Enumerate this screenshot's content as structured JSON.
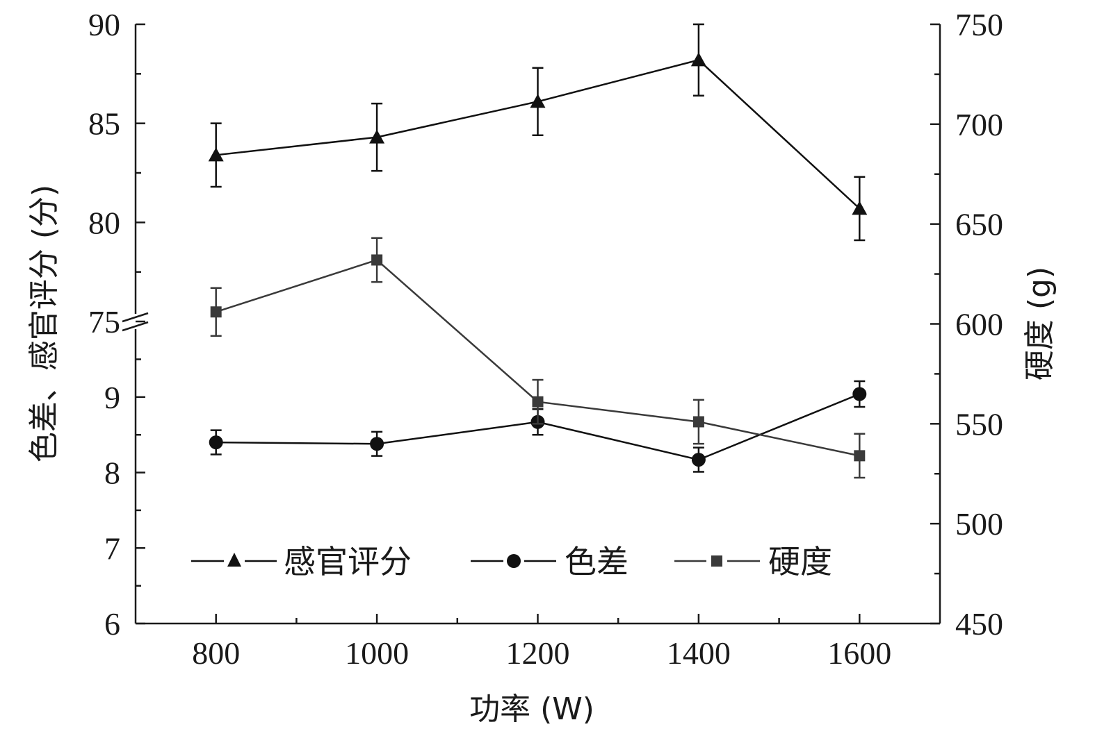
{
  "chart_data": {
    "type": "line",
    "x_label": "功率 (W)",
    "y_left_label": "色差、感官评分 (分)",
    "y_right_label": "硬度 (g)",
    "x_ticks": [
      800,
      1000,
      1200,
      1400,
      1600
    ],
    "x_range": [
      700,
      1700
    ],
    "y_left_upper_ticks": [
      75,
      80,
      85,
      90
    ],
    "y_left_upper_range": [
      75,
      90
    ],
    "y_left_lower_ticks": [
      6,
      7,
      8,
      9
    ],
    "y_left_lower_range": [
      6,
      9.9
    ],
    "y_left_axis_break": "between 9.9 and 75",
    "y_right_ticks": [
      450,
      500,
      550,
      600,
      650,
      700,
      750
    ],
    "y_right_range": [
      450,
      750
    ],
    "legend_position": "inside-bottom",
    "series": [
      {
        "name": "感官评分",
        "axis": "left-upper",
        "marker": "triangle",
        "color": "#111111",
        "x": [
          800,
          1000,
          1200,
          1400,
          1600
        ],
        "y": [
          83.4,
          84.3,
          86.1,
          88.2,
          80.7
        ],
        "err": [
          1.6,
          1.7,
          1.7,
          1.8,
          1.6
        ]
      },
      {
        "name": "色差",
        "axis": "left-lower",
        "marker": "circle",
        "color": "#111111",
        "x": [
          800,
          1000,
          1200,
          1400,
          1600
        ],
        "y": [
          8.4,
          8.38,
          8.67,
          8.17,
          9.04
        ],
        "err": [
          0.16,
          0.16,
          0.17,
          0.16,
          0.17
        ]
      },
      {
        "name": "硬度",
        "axis": "right",
        "marker": "square",
        "color": "#3a3a3a",
        "x": [
          800,
          1000,
          1200,
          1400,
          1600
        ],
        "y": [
          606,
          632,
          561,
          551,
          534
        ],
        "err": [
          12,
          11,
          11,
          11,
          11
        ]
      }
    ]
  }
}
